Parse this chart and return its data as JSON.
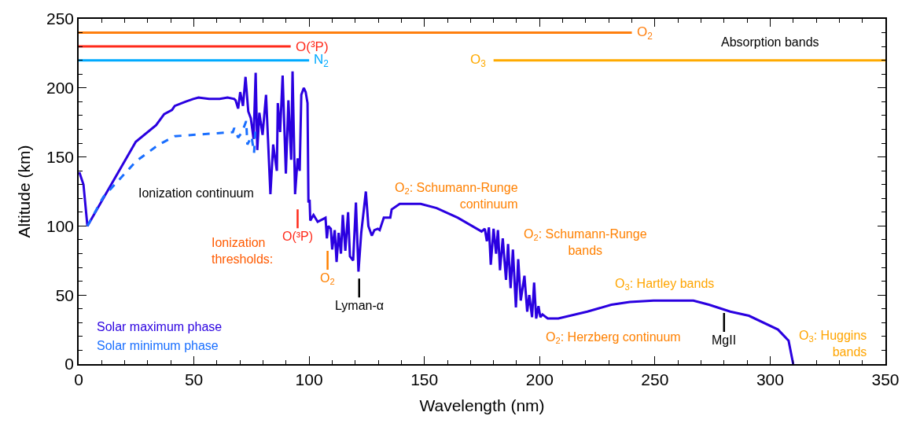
{
  "chart_data": {
    "type": "line",
    "xlabel": "Wavelength (nm)",
    "ylabel": "Altitude (km)",
    "xlim": [
      0,
      350
    ],
    "ylim": [
      0,
      250
    ],
    "xticks": [
      0,
      {
        "value": 10,
        "label": null
      },
      {
        "value": 20,
        "label": null
      },
      {
        "value": 30,
        "label": null
      },
      {
        "value": 40,
        "label": null
      },
      50,
      {
        "value": 60,
        "label": null
      },
      {
        "value": 70,
        "label": null
      },
      {
        "value": 80,
        "label": null
      },
      {
        "value": 90,
        "label": null
      },
      100,
      {
        "value": 110,
        "label": null
      },
      {
        "value": 120,
        "label": null
      },
      {
        "value": 130,
        "label": null
      },
      {
        "value": 140,
        "label": null
      },
      150,
      {
        "value": 160,
        "label": null
      },
      {
        "value": 170,
        "label": null
      },
      {
        "value": 180,
        "label": null
      },
      {
        "value": 190,
        "label": null
      },
      200,
      {
        "value": 210,
        "label": null
      },
      {
        "value": 220,
        "label": null
      },
      {
        "value": 230,
        "label": null
      },
      {
        "value": 240,
        "label": null
      },
      250,
      {
        "value": 260,
        "label": null
      },
      {
        "value": 270,
        "label": null
      },
      {
        "value": 280,
        "label": null
      },
      {
        "value": 290,
        "label": null
      },
      300,
      {
        "value": 310,
        "label": null
      },
      {
        "value": 320,
        "label": null
      },
      {
        "value": 330,
        "label": null
      },
      {
        "value": 340,
        "label": null
      },
      350
    ],
    "yticks": [
      0,
      {
        "value": 10,
        "label": null
      },
      {
        "value": 20,
        "label": null
      },
      {
        "value": 30,
        "label": null
      },
      {
        "value": 40,
        "label": null
      },
      50,
      {
        "value": 60,
        "label": null
      },
      {
        "value": 70,
        "label": null
      },
      {
        "value": 80,
        "label": null
      },
      {
        "value": 90,
        "label": null
      },
      100,
      {
        "value": 110,
        "label": null
      },
      {
        "value": 120,
        "label": null
      },
      {
        "value": 130,
        "label": null
      },
      {
        "value": 140,
        "label": null
      },
      150,
      {
        "value": 160,
        "label": null
      },
      {
        "value": 170,
        "label": null
      },
      {
        "value": 180,
        "label": null
      },
      {
        "value": 190,
        "label": null
      },
      200,
      {
        "value": 210,
        "label": null
      },
      {
        "value": 220,
        "label": null
      },
      {
        "value": 230,
        "label": null
      },
      {
        "value": 240,
        "label": null
      },
      250
    ],
    "legend": "bottom left",
    "series": [
      {
        "name": "Solar maximum phase",
        "color": "#2a00e0",
        "line_style": "solid",
        "x": [
          0.3,
          2.1,
          3.8,
          24.8,
          33.6,
          37.1,
          40.5,
          41.7,
          46.3,
          49.7,
          52,
          56.6,
          61.2,
          64.6,
          67.5,
          68.1,
          69.2,
          70.1,
          71.3,
          72.4,
          73.6,
          74.7,
          75.9,
          76.8,
          77.5,
          78.4,
          79.8,
          81.3,
          83.2,
          84.4,
          85.3,
          86,
          86.4,
          87.4,
          88.5,
          89.9,
          91,
          92.2,
          92.8,
          93.9,
          95,
          95.9,
          96.6,
          97.7,
          98.5,
          99.3,
          99.7,
          100.2,
          100.5,
          101.9,
          103.7,
          106,
          107.1,
          107.7,
          108.3,
          109.4,
          110,
          111.1,
          111.9,
          112.8,
          113.8,
          114.6,
          115.7,
          116.9,
          117.7,
          119.1,
          120.3,
          121.4,
          122.6,
          124.6,
          125.7,
          127.2,
          128.3,
          129.8,
          130.6,
          132.4,
          135.2,
          135.8,
          139.3,
          148.4,
          155.3,
          164.5,
          174.8,
          176.2,
          177.1,
          178,
          178.8,
          180,
          181.1,
          181.9,
          182.8,
          184,
          185.4,
          186.3,
          187.4,
          188.4,
          189.7,
          190.7,
          191.8,
          193.4,
          194.6,
          195.5,
          196.7,
          197.6,
          198.5,
          199.5,
          200.3,
          201.2,
          203.5,
          208.1,
          220.7,
          231.1,
          239.1,
          249.4,
          266.7,
          273.5,
          282.7,
          290.8,
          303.4,
          308,
          310
        ],
        "values": [
          139,
          130,
          100,
          161,
          173,
          181,
          184,
          187,
          190,
          192,
          193,
          192,
          192,
          193,
          192,
          191,
          185,
          197,
          187,
          208,
          183,
          178,
          163,
          211,
          155,
          182,
          166,
          195,
          123,
          159,
          148,
          140,
          189,
          168,
          209,
          138,
          191,
          148,
          212,
          123,
          149,
          140,
          195,
          200,
          197,
          189,
          117,
          119,
          104,
          108,
          103,
          105,
          106,
          91,
          100,
          98,
          83,
          97,
          74,
          95,
          80,
          108,
          82,
          110,
          78,
          75,
          117,
          67,
          95,
          125,
          100,
          93,
          97,
          98,
          97,
          106,
          106,
          112,
          116,
          116,
          113,
          106,
          96,
          98,
          89,
          99,
          72,
          98,
          80,
          97,
          68,
          91,
          61,
          87,
          55,
          83,
          41,
          76,
          46,
          64,
          38,
          50,
          34,
          59,
          33,
          42,
          34,
          36,
          33,
          33,
          38,
          43,
          45,
          46,
          46,
          43,
          38,
          35,
          25,
          17,
          0
        ]
      },
      {
        "name": "Solar minimum phase",
        "color": "#1a6fff",
        "line_style": "dashed",
        "x": [
          3.8,
          10.7,
          25,
          34.8,
          41.7,
          49.7,
          66.9,
          67.5,
          69.2,
          70.9,
          72.7,
          73.2,
          75,
          76.1,
          76.7
        ],
        "values": [
          100,
          121,
          147,
          159,
          165,
          166,
          168,
          171,
          164,
          168,
          176,
          159,
          165,
          153,
          170
        ]
      },
      {
        "name": "O$_{2}$",
        "color": "#ff7f0e",
        "line_style": "solid",
        "x": [
          0,
          240
        ],
        "values": [
          240,
          240
        ]
      },
      {
        "name": "O(³P)",
        "color": "#ff2a1a",
        "line_style": "solid",
        "x": [
          0,
          92
        ],
        "values": [
          230,
          230
        ]
      },
      {
        "name": "N$_{2}$",
        "color": "#00aaff",
        "line_style": "solid",
        "x": [
          0,
          100
        ],
        "values": [
          220,
          220
        ]
      },
      {
        "name": "O$_{3}$",
        "color": "#ffaa00",
        "line_style": "solid",
        "x": [
          180,
          350
        ],
        "values": [
          220,
          220
        ]
      }
    ],
    "annotations": [
      "Absorption bands",
      "Ionization continuum",
      "O$_{2}$: Schumann-Runge\ncontinuum",
      "O$_{2}$: Schumann-Runge\nbands",
      "O$_{2}$: Herzberg continuum",
      "O$_{3}$: Hartley bands",
      "O$_{3}$: Huggins\nbands",
      "Ionization\nthresholds:",
      "O(³P)",
      "O$_{2}$",
      "Lyman-α",
      {
        "text": "MgII",
        "x": 280,
        "y": 37
      }
    ]
  }
}
